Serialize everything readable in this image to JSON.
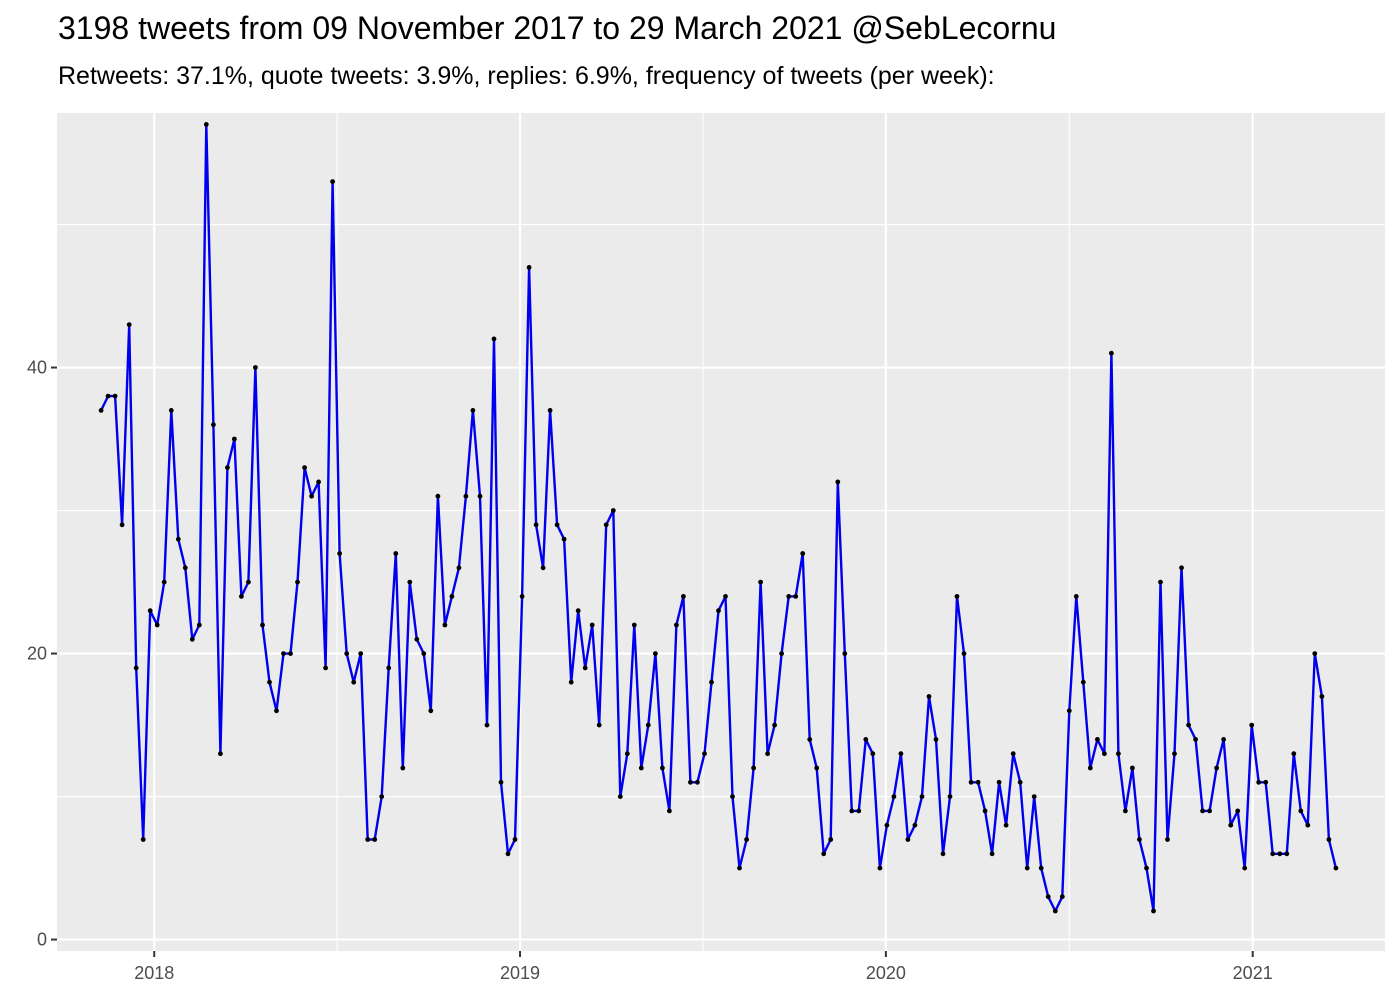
{
  "title": "3198 tweets from 09 November 2017 to 29 March 2021 @SebLecornu",
  "subtitle": "Retweets: 37.1%, quote tweets: 3.9%, replies: 6.9%, frequency of tweets (per week):",
  "chart_data": {
    "type": "line",
    "title": "3198 tweets from 09 November 2017 to 29 March 2021 @SebLecornu",
    "subtitle": "Retweets: 37.1%, quote tweets: 3.9%, replies: 6.9%, frequency of tweets (per week):",
    "xlabel": "",
    "ylabel": "",
    "x_start": "2017-11-09",
    "x_interval": "1 week",
    "xlim": [
      "2017-09-26",
      "2021-05-13"
    ],
    "ylim": [
      -0.8,
      57.8
    ],
    "x_ticks": [
      "2018-01-01",
      "2019-01-01",
      "2020-01-01",
      "2021-01-01"
    ],
    "x_tick_labels": [
      "2018",
      "2019",
      "2020",
      "2021"
    ],
    "y_ticks": [
      0,
      20,
      40
    ],
    "y_tick_labels": [
      "0",
      "20",
      "40"
    ],
    "grid": true,
    "line_color": "#0000ee",
    "point_color": "#000000",
    "panel_background": "#ebebeb",
    "series": [
      {
        "values": [
          37,
          38,
          38,
          29,
          43,
          19,
          7,
          23,
          22,
          25,
          37,
          28,
          26,
          21,
          22,
          57,
          36,
          13,
          33,
          35,
          24,
          25,
          40,
          22,
          18,
          16,
          20,
          20,
          25,
          33,
          31,
          32,
          19,
          53,
          27,
          20,
          18,
          20,
          7,
          7,
          10,
          19,
          27,
          12,
          25,
          21,
          20,
          16,
          31,
          22,
          24,
          26,
          31,
          37,
          31,
          15,
          42,
          11,
          6,
          7,
          24,
          47,
          29,
          26,
          37,
          29,
          28,
          18,
          23,
          19,
          22,
          15,
          29,
          30,
          10,
          13,
          22,
          12,
          15,
          20,
          12,
          9,
          22,
          24,
          11,
          11,
          13,
          18,
          23,
          24,
          10,
          5,
          7,
          12,
          25,
          13,
          15,
          20,
          24,
          24,
          27,
          14,
          12,
          6,
          7,
          32,
          20,
          9,
          9,
          14,
          13,
          5,
          8,
          10,
          13,
          7,
          8,
          10,
          17,
          14,
          6,
          10,
          24,
          20,
          11,
          11,
          9,
          6,
          11,
          8,
          13,
          11,
          5,
          10,
          5,
          3,
          2,
          3,
          16,
          24,
          18,
          12,
          14,
          13,
          41,
          13,
          9,
          12,
          7,
          5,
          2,
          25,
          7,
          13,
          26,
          15,
          14,
          9,
          9,
          12,
          14,
          8,
          9,
          5,
          15,
          11,
          11,
          6,
          6,
          6,
          13,
          9,
          8,
          20,
          17,
          7,
          5
        ]
      }
    ]
  }
}
